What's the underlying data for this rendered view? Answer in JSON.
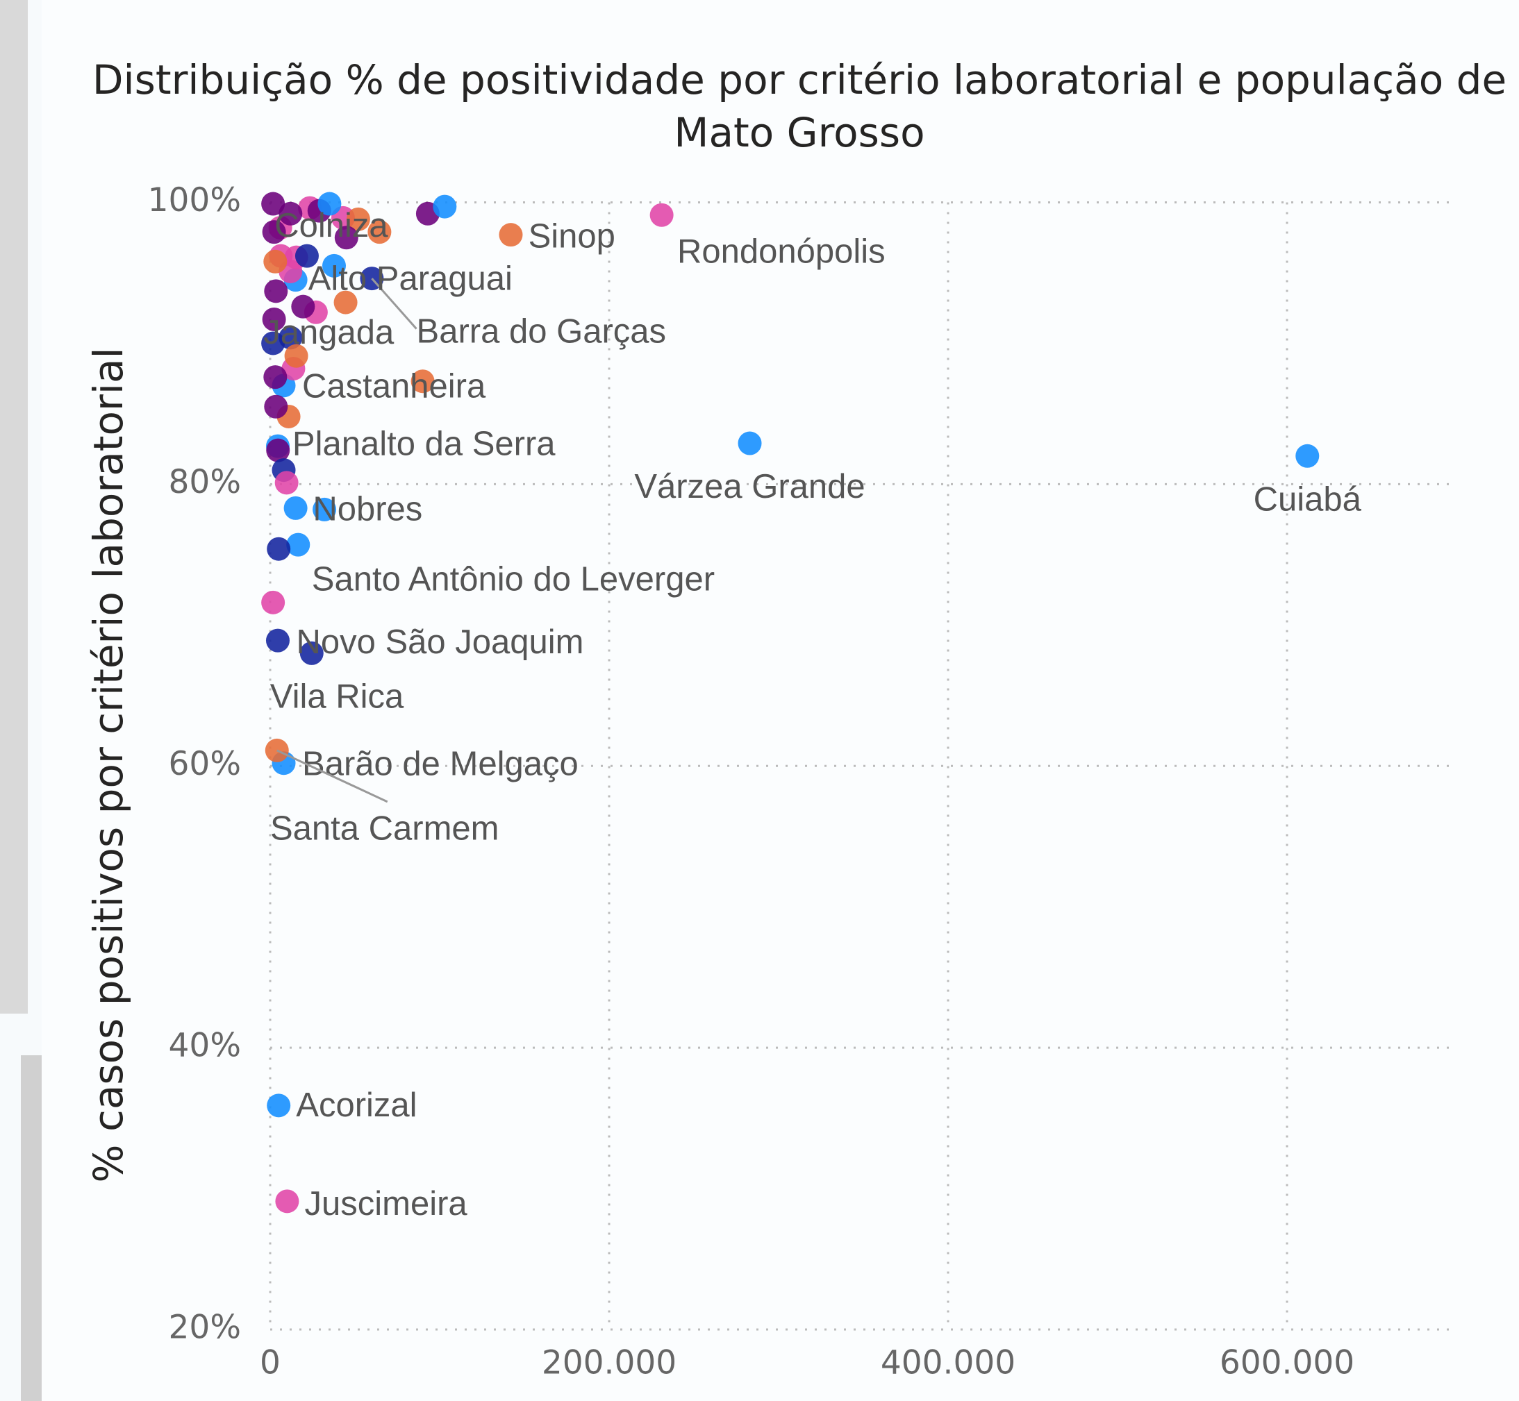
{
  "chart_data": {
    "type": "scatter",
    "title": "Distribuição % de positividade por critério laboratorial e população de Mato Grosso",
    "y_label": "% casos positivos por critério laboratorial",
    "xlim": [
      0,
      700000
    ],
    "xticks": [
      0,
      {
        "value": 200000,
        "label": "200.000"
      },
      {
        "value": 400000,
        "label": "400.000"
      },
      {
        "value": 600000,
        "label": "600.000"
      }
    ],
    "ylim": [
      20,
      100
    ],
    "yticks": [
      {
        "value": 20,
        "label": "20%"
      },
      {
        "value": 40,
        "label": "40%"
      },
      {
        "value": 60,
        "label": "60%"
      },
      {
        "value": 80,
        "label": "80%"
      },
      {
        "value": 100,
        "label": "100%"
      }
    ],
    "grid": true,
    "points": [
      {
        "label": "Cuiabá",
        "x": 612000,
        "y": 82.0,
        "color": "#118dff"
      },
      {
        "label": "Várzea Grande",
        "x": 283000,
        "y": 82.9,
        "color": "#118dff"
      },
      {
        "label": "Rondonópolis",
        "x": 231000,
        "y": 99.1,
        "color": "#e044a7"
      },
      {
        "label": "Sinop",
        "x": 142000,
        "y": 97.7,
        "color": "#e66c37"
      },
      {
        "label": "Barra do Garças",
        "x": 60000,
        "y": 94.6,
        "color": "#12239e"
      },
      {
        "label": "Alto Paraguai",
        "x": 15000,
        "y": 94.5,
        "color": "#118dff"
      },
      {
        "label": "Colniza",
        "x": 6000,
        "y": 98.2,
        "color": "#e044a7"
      },
      {
        "label": "Jangada",
        "x": 12000,
        "y": 90.4,
        "color": "#12239e"
      },
      {
        "label": "Castanheira",
        "x": 8000,
        "y": 87.0,
        "color": "#118dff"
      },
      {
        "label": "Planalto da Serra",
        "x": 4500,
        "y": 82.7,
        "color": "#118dff"
      },
      {
        "label": "Nobres",
        "x": 32000,
        "y": 78.2,
        "color": "#118dff"
      },
      {
        "label": "Santo Antônio do Leverger",
        "x": 16500,
        "y": 75.7,
        "color": "#118dff"
      },
      {
        "label": "Novo São Joaquim",
        "x": 4500,
        "y": 68.9,
        "color": "#12239e"
      },
      {
        "label": "Vila Rica",
        "x": 24500,
        "y": 68.0,
        "color": "#12239e"
      },
      {
        "label": "Barão de Melgaço",
        "x": 8000,
        "y": 60.2,
        "color": "#118dff"
      },
      {
        "label": "Santa Carmem",
        "x": 4000,
        "y": 61.1,
        "color": "#e66c37"
      },
      {
        "label": "Acorizal",
        "x": 5000,
        "y": 35.9,
        "color": "#118dff"
      },
      {
        "label": "Juscimeira",
        "x": 10000,
        "y": 29.1,
        "color": "#e044a7"
      },
      {
        "x": 90000,
        "y": 87.3,
        "color": "#e66c37"
      },
      {
        "x": 44500,
        "y": 92.9,
        "color": "#e66c37"
      },
      {
        "x": 93000,
        "y": 99.2,
        "color": "#6b007b"
      },
      {
        "x": 103000,
        "y": 99.7,
        "color": "#118dff"
      },
      {
        "x": 64500,
        "y": 97.9,
        "color": "#e66c37"
      },
      {
        "x": 43000,
        "y": 98.9,
        "color": "#e044a7"
      },
      {
        "x": 52000,
        "y": 98.8,
        "color": "#e66c37"
      },
      {
        "x": 45000,
        "y": 97.5,
        "color": "#6b007b"
      },
      {
        "x": 37700,
        "y": 95.5,
        "color": "#118dff"
      },
      {
        "x": 27000,
        "y": 92.2,
        "color": "#e044a7"
      },
      {
        "x": 19400,
        "y": 92.6,
        "color": "#6b007b"
      },
      {
        "x": 12000,
        "y": 95.1,
        "color": "#e044a7"
      },
      {
        "x": 15400,
        "y": 96.1,
        "color": "#e044a7"
      },
      {
        "x": 21700,
        "y": 96.2,
        "color": "#12239e"
      },
      {
        "x": 13700,
        "y": 88.2,
        "color": "#e044a7"
      },
      {
        "x": 15400,
        "y": 89.1,
        "color": "#e66c37"
      },
      {
        "x": 10900,
        "y": 84.8,
        "color": "#e66c37"
      },
      {
        "x": 3400,
        "y": 85.5,
        "color": "#6b007b"
      },
      {
        "x": 4600,
        "y": 82.4,
        "color": "#6b007b"
      },
      {
        "x": 8000,
        "y": 81.0,
        "color": "#12239e"
      },
      {
        "x": 9700,
        "y": 80.1,
        "color": "#e044a7"
      },
      {
        "x": 5000,
        "y": 75.4,
        "color": "#12239e"
      },
      {
        "x": 1700,
        "y": 71.6,
        "color": "#e044a7"
      },
      {
        "x": 2300,
        "y": 97.9,
        "color": "#6b007b"
      },
      {
        "x": 3400,
        "y": 93.7,
        "color": "#6b007b"
      },
      {
        "x": 2300,
        "y": 91.7,
        "color": "#6b007b"
      },
      {
        "x": 1700,
        "y": 90.0,
        "color": "#12239e"
      },
      {
        "x": 1700,
        "y": 99.9,
        "color": "#6b007b"
      },
      {
        "x": 23400,
        "y": 99.6,
        "color": "#e044a7"
      },
      {
        "x": 29000,
        "y": 99.4,
        "color": "#6b007b"
      },
      {
        "x": 35000,
        "y": 99.9,
        "color": "#118dff"
      },
      {
        "x": 12000,
        "y": 99.2,
        "color": "#6b007b"
      },
      {
        "x": 6300,
        "y": 96.2,
        "color": "#e044a7"
      },
      {
        "x": 3000,
        "y": 95.8,
        "color": "#e66c37"
      },
      {
        "x": 3000,
        "y": 87.6,
        "color": "#6b007b"
      },
      {
        "x": 15000,
        "y": 78.3,
        "color": "#118dff"
      }
    ]
  }
}
